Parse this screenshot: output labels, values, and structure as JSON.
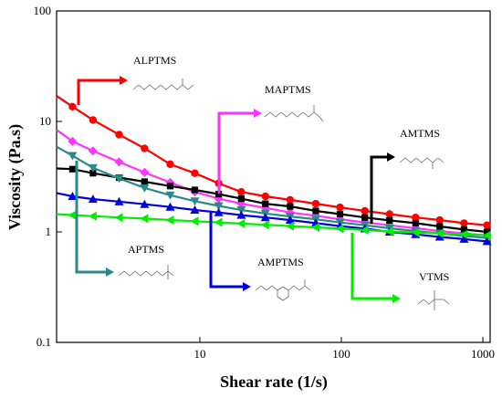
{
  "chart_data": {
    "type": "line",
    "xlabel": "Shear rate (1/s)",
    "ylabel": "Viscosity (Pa.s)",
    "xscale": "log",
    "yscale": "log",
    "xlim": [
      1.25,
      1050
    ],
    "ylim": [
      0.1,
      100
    ],
    "xticks": [
      10,
      100,
      1000
    ],
    "xtick_labels": [
      "10",
      "100",
      "1000"
    ],
    "yticks": [
      0.1,
      1,
      10,
      100
    ],
    "ytick_labels": [
      "0.1",
      "1",
      "10",
      "100"
    ],
    "grid": false,
    "series": [
      {
        "name": "ALPTMS",
        "color": "#ff0000",
        "marker": "circle",
        "x": [
          1.6,
          2.2,
          3.3,
          4.9,
          7.3,
          10.7,
          15.5,
          22,
          32,
          47,
          70,
          102,
          150,
          220,
          330,
          480,
          700,
          1000
        ],
        "y": [
          13.6,
          10.3,
          7.6,
          5.7,
          4.1,
          3.4,
          2.75,
          2.3,
          2.1,
          1.95,
          1.8,
          1.67,
          1.55,
          1.45,
          1.35,
          1.28,
          1.2,
          1.15
        ]
      },
      {
        "name": "MAPTMS",
        "color": "#ff33ff",
        "marker": "diamond",
        "x": [
          1.6,
          2.2,
          3.3,
          4.9,
          7.3,
          10.7,
          15.5,
          22,
          32,
          47,
          70,
          102,
          150,
          220,
          330,
          480,
          700,
          1000
        ],
        "y": [
          6.6,
          5.4,
          4.3,
          3.45,
          2.8,
          2.3,
          2.0,
          1.8,
          1.65,
          1.5,
          1.4,
          1.3,
          1.22,
          1.15,
          1.08,
          1.02,
          0.97,
          0.93
        ]
      },
      {
        "name": "AMTMS",
        "color": "#000000",
        "marker": "square",
        "x": [
          1.6,
          2.2,
          3.3,
          4.9,
          7.3,
          10.7,
          15.5,
          22,
          32,
          47,
          70,
          102,
          150,
          220,
          330,
          480,
          700,
          1000
        ],
        "y": [
          3.7,
          3.4,
          3.1,
          2.85,
          2.6,
          2.4,
          2.2,
          2.0,
          1.8,
          1.7,
          1.55,
          1.45,
          1.35,
          1.27,
          1.2,
          1.12,
          1.05,
          1.0
        ]
      },
      {
        "name": "APTMS",
        "color": "#2a8a8a",
        "marker": "triangle-down",
        "x": [
          1.6,
          2.2,
          3.3,
          4.9,
          7.3,
          10.7,
          15.5,
          22,
          32,
          47,
          70,
          102,
          150,
          220,
          330,
          480,
          700,
          1000
        ],
        "y": [
          4.9,
          3.8,
          3.05,
          2.5,
          2.15,
          1.9,
          1.72,
          1.58,
          1.47,
          1.38,
          1.3,
          1.22,
          1.15,
          1.08,
          1.02,
          0.97,
          0.92,
          0.88
        ]
      },
      {
        "name": "AMPTMS",
        "color": "#0000dd",
        "marker": "triangle-up",
        "x": [
          1.6,
          2.2,
          3.3,
          4.9,
          7.3,
          10.7,
          15.5,
          22,
          32,
          47,
          70,
          102,
          150,
          220,
          330,
          480,
          700,
          1000
        ],
        "y": [
          2.1,
          1.98,
          1.88,
          1.78,
          1.68,
          1.58,
          1.5,
          1.42,
          1.35,
          1.28,
          1.2,
          1.13,
          1.07,
          1.0,
          0.95,
          0.9,
          0.86,
          0.82
        ]
      },
      {
        "name": "VTMS",
        "color": "#00ee00",
        "marker": "triangle-left",
        "x": [
          1.6,
          2.2,
          3.3,
          4.9,
          7.3,
          10.7,
          15.5,
          22,
          32,
          47,
          70,
          102,
          150,
          220,
          330,
          480,
          700,
          1000
        ],
        "y": [
          1.42,
          1.39,
          1.35,
          1.32,
          1.28,
          1.25,
          1.22,
          1.19,
          1.16,
          1.13,
          1.1,
          1.07,
          1.04,
          1.01,
          0.99,
          0.97,
          0.95,
          0.93
        ]
      }
    ]
  }
}
